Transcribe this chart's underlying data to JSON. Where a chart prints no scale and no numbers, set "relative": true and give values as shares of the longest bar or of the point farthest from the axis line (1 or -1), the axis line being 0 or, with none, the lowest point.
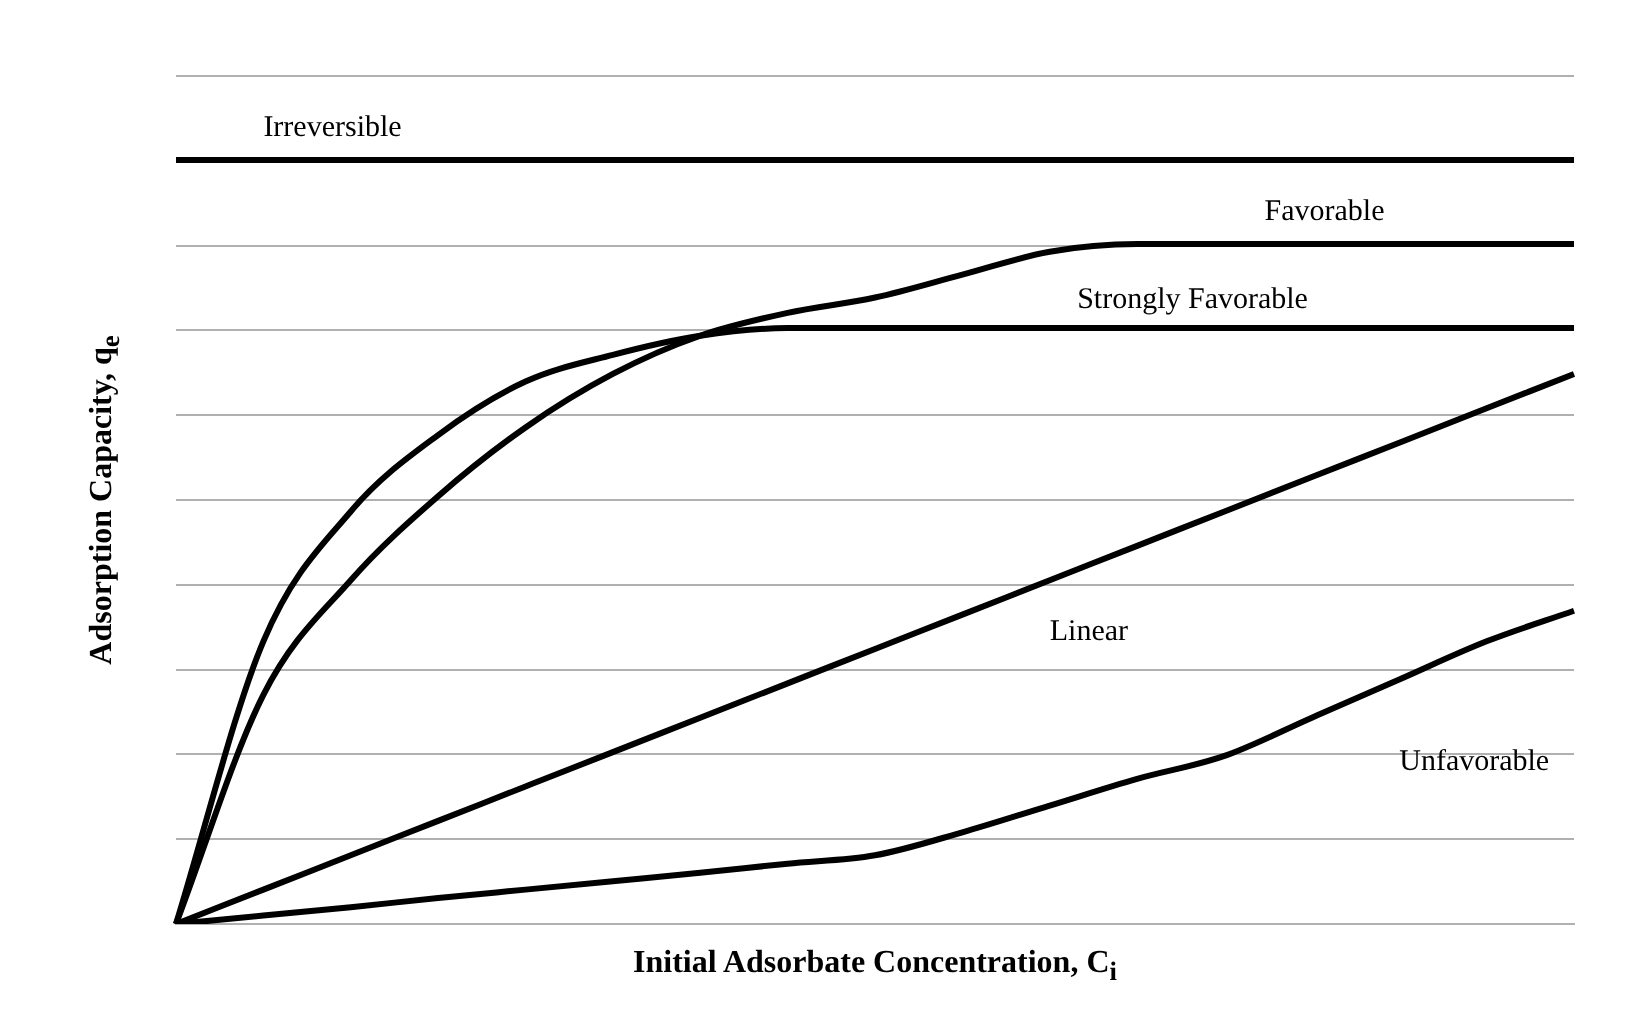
{
  "chart_data": {
    "type": "line",
    "relative": true,
    "xlabel": "Initial Adsorbate Concentration, C$_{i}$",
    "ylabel": "Adsorption Capacity, q$_{e}$",
    "categories": [
      null,
      null,
      null,
      null,
      null,
      null,
      null,
      null,
      null,
      null,
      null,
      null,
      null,
      null,
      null,
      null,
      null
    ],
    "grid": "y",
    "legend": false,
    "marker": "none",
    "line_style": "solid",
    "series": [
      {
        "name": "Irreversible",
        "color": "#000000",
        "values": [
          1,
          1,
          1,
          1,
          1,
          1,
          1,
          1,
          1,
          1,
          1,
          1,
          1,
          1,
          1,
          1,
          1
        ]
      },
      {
        "name": "Favorable",
        "color": "#000000",
        "values": [
          0,
          0.3,
          0.45,
          0.56,
          0.65,
          0.72,
          0.77,
          0.8,
          0.82,
          0.85,
          0.88,
          0.89,
          0.89,
          0.89,
          0.89,
          0.89,
          0.89
        ]
      },
      {
        "name": "Strongly Favorable",
        "color": "#000000",
        "values": [
          0,
          0.37,
          0.54,
          0.64,
          0.71,
          0.745,
          0.77,
          0.78,
          0.78,
          0.78,
          0.78,
          0.78,
          0.78,
          0.78,
          0.78,
          0.78,
          0.78
        ]
      },
      {
        "name": "Linear",
        "color": "#000000",
        "values": [
          0,
          0.045,
          0.09,
          0.135,
          0.18,
          0.225,
          0.27,
          0.315,
          0.36,
          0.405,
          0.45,
          0.495,
          0.54,
          0.585,
          0.63,
          0.675,
          0.72
        ]
      },
      {
        "name": "Unfavorable",
        "color": "#000000",
        "values": [
          0,
          0.011,
          0.022,
          0.034,
          0.045,
          0.056,
          0.067,
          0.079,
          0.09,
          0.12,
          0.155,
          0.19,
          0.22,
          0.27,
          0.32,
          0.37,
          0.41
        ]
      }
    ]
  }
}
